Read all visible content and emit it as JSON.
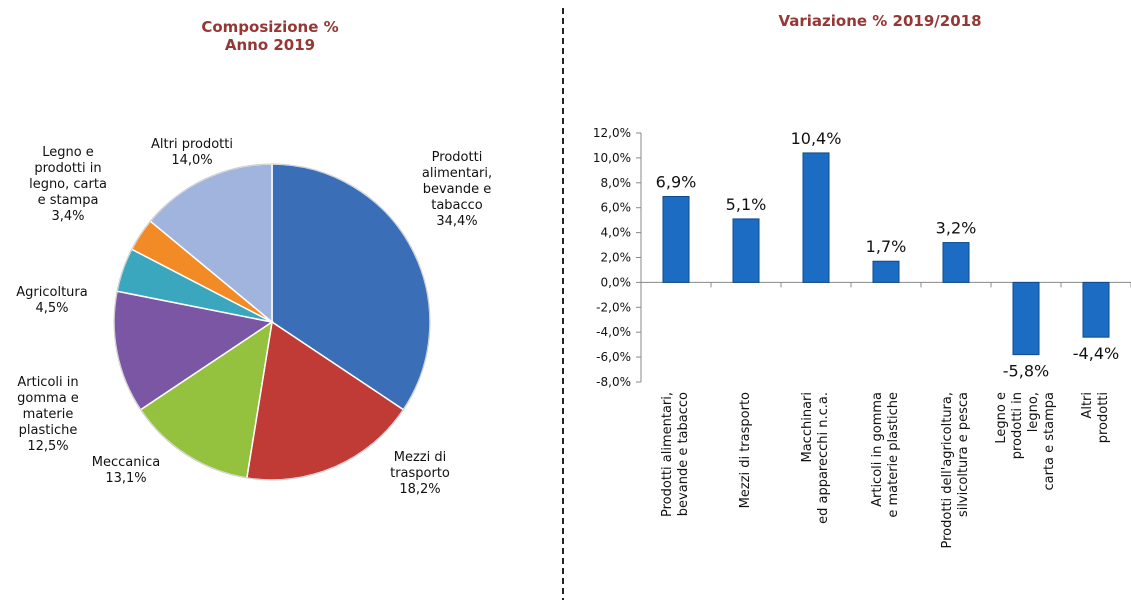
{
  "chart_data": [
    {
      "type": "pie",
      "title": "Composizione %\nAnno 2019",
      "categories": [
        "Prodotti\nalimentari,\nbevande e\ntabacco",
        "Mezzi di\ntrasporto",
        "Meccanica",
        "Articoli in\ngomma e\nmaterie\nplastiche",
        "Agricoltura",
        "Legno e\nprodotti in\nlegno, carta\ne stampa",
        "Altri prodotti"
      ],
      "values": [
        34.4,
        18.2,
        13.1,
        12.5,
        4.5,
        3.4,
        14.0
      ],
      "value_labels": [
        "34,4%",
        "18,2%",
        "13,1%",
        "12,5%",
        "4,5%",
        "3,4%",
        "14,0%"
      ],
      "colors": [
        "#3a6fb8",
        "#c03a36",
        "#94c23f",
        "#7b56a4",
        "#3ba7be",
        "#f28a26",
        "#a1b4de"
      ]
    },
    {
      "type": "bar",
      "title": "Variazione % 2019/2018",
      "categories": [
        "Prodotti alimentari,\nbevande e tabacco",
        "Mezzi di trasporto",
        "Macchinari\ned apparecchi n.c.a.",
        "Articoli in gomma\ne materie plastiche",
        "Prodotti dell'agricoltura,\nsilvicoltura e pesca",
        "Legno e prodotti in legno,\ncarta e stampa",
        "Altri prodotti"
      ],
      "values": [
        6.9,
        5.1,
        10.4,
        1.7,
        3.2,
        -5.8,
        -4.4
      ],
      "value_labels": [
        "6,9%",
        "5,1%",
        "10,4%",
        "1,7%",
        "3,2%",
        "-5,8%",
        "-4,4%"
      ],
      "color": "#1c6cc4",
      "ylim": [
        -8,
        12
      ],
      "yticks": [
        {
          "value": -8,
          "label": "-8,0%"
        },
        {
          "value": -6,
          "label": "-6,0%"
        },
        {
          "value": -4,
          "label": "-4,0%"
        },
        {
          "value": -2,
          "label": "-2,0%"
        },
        {
          "value": 0,
          "label": "0,0%"
        },
        {
          "value": 2,
          "label": "2,0%"
        },
        {
          "value": 4,
          "label": "4,0%"
        },
        {
          "value": 6,
          "label": "6,0%"
        },
        {
          "value": 8,
          "label": "8,0%"
        },
        {
          "value": 10,
          "label": "10,0%"
        },
        {
          "value": 12,
          "label": "12,0%"
        }
      ]
    }
  ]
}
